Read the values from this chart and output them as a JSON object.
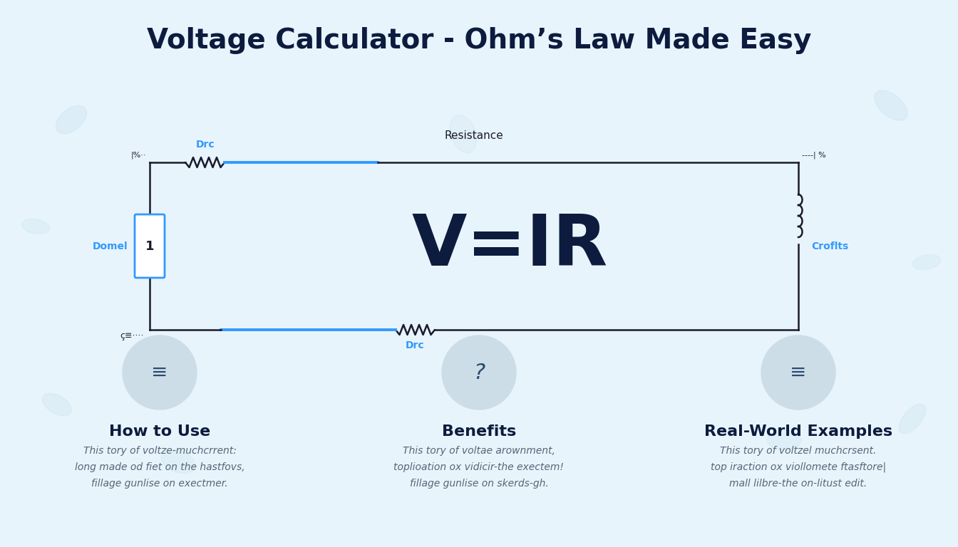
{
  "title": "Voltage Calculator - Ohm’s Law Made Easy",
  "title_color": "#0d1b3e",
  "title_fontsize": 28,
  "bg_color": "#e8f4fb",
  "formula": "V=IR",
  "formula_color": "#0d1b3e",
  "formula_fontsize": 72,
  "resistance_label": "Resistance",
  "circuit_line_color": "#1a1a2e",
  "circuit_highlight_color": "#3399ff",
  "voltage_label_left": "Domel",
  "voltage_label_right": "Croflts",
  "resistor_label_top": "Drc",
  "resistor_label_bot": "Drc",
  "sections": [
    {
      "title": "How to Use",
      "text": "This tory of voltze-muchcrrent:\nlong made od fiet on the hastfovs,\nfillage gunlise on exectmer."
    },
    {
      "title": "Benefits",
      "text": "This tory of voltae arownment,\ntoplioation ox vidicir-the exectem!\nfillage gunlise on skerds-gh."
    },
    {
      "title": "Real-World Examples",
      "text": "This tory of voltzel muchcrsent.\ntop iraction ox viollomete ftasftore|\nmall lilbre-the on-litust edit."
    }
  ],
  "section_icon_bg": "#ccdde8",
  "section_title_color": "#0d1b3e",
  "section_text_color": "#556677",
  "section_title_fontsize": 16,
  "section_text_fontsize": 10
}
